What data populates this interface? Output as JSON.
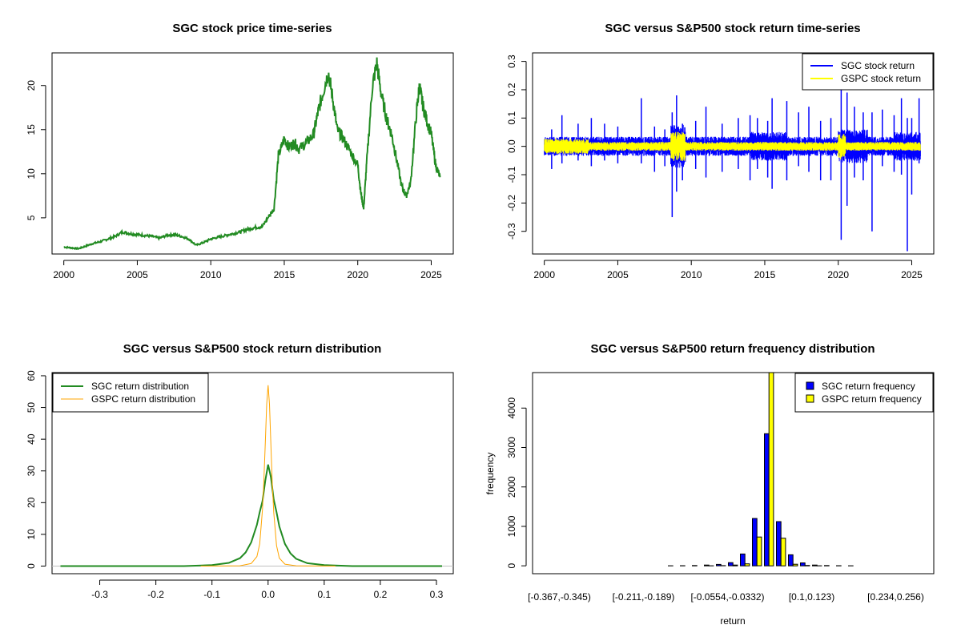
{
  "colors": {
    "sgc": "#228B22",
    "sgc_return": "#0000FF",
    "gspc": "#FFFF00",
    "gspc_density": "#FFA500",
    "axis": "#000000"
  },
  "chart_data": [
    {
      "id": "price",
      "type": "line",
      "title": "SGC stock price time-series",
      "xlabel": "",
      "ylabel": "",
      "xlim": [
        1999.2,
        2026.5
      ],
      "ylim": [
        0.9,
        23.7
      ],
      "xticks": [
        "2000",
        "2005",
        "2010",
        "2015",
        "2020",
        "2025"
      ],
      "yticks": [
        "5",
        "10",
        "15",
        "20"
      ],
      "series": [
        {
          "name": "SGC stock price",
          "color": "#228B22",
          "x": [
            2000.0,
            2000.5,
            2001.0,
            2001.5,
            2002.0,
            2002.5,
            2003.0,
            2003.5,
            2004.0,
            2004.5,
            2005.0,
            2005.5,
            2006.0,
            2006.5,
            2007.0,
            2007.5,
            2008.0,
            2008.5,
            2009.0,
            2009.5,
            2010.0,
            2010.5,
            2011.0,
            2011.5,
            2012.0,
            2012.5,
            2013.0,
            2013.5,
            2014.0,
            2014.3,
            2014.6,
            2015.0,
            2015.3,
            2015.7,
            2016.0,
            2016.5,
            2017.0,
            2017.3,
            2017.6,
            2018.0,
            2018.3,
            2018.6,
            2019.0,
            2019.5,
            2020.0,
            2020.2,
            2020.4,
            2020.6,
            2021.0,
            2021.3,
            2021.6,
            2022.0,
            2022.3,
            2022.6,
            2023.0,
            2023.3,
            2023.6,
            2024.0,
            2024.2,
            2024.4,
            2024.7,
            2025.0,
            2025.3,
            2025.6
          ],
          "y": [
            1.7,
            1.6,
            1.5,
            1.8,
            2.1,
            2.3,
            2.6,
            2.9,
            3.4,
            3.2,
            3.1,
            3.0,
            2.9,
            2.7,
            3.0,
            3.1,
            2.9,
            2.6,
            1.9,
            2.2,
            2.6,
            2.8,
            3.0,
            3.2,
            3.4,
            3.7,
            3.9,
            4.0,
            5.3,
            6.0,
            12.0,
            14.0,
            13.0,
            13.5,
            12.8,
            13.5,
            14.5,
            17.0,
            19.0,
            21.5,
            18.5,
            15.0,
            14.0,
            12.5,
            11.0,
            8.0,
            6.0,
            11.0,
            20.0,
            22.5,
            19.0,
            16.0,
            14.5,
            12.0,
            8.5,
            7.5,
            9.0,
            17.0,
            20.0,
            18.0,
            16.0,
            14.5,
            11.0,
            9.6
          ]
        }
      ]
    },
    {
      "id": "returns",
      "type": "line",
      "title": "SGC versus S&P500 stock return time-series",
      "xlabel": "",
      "ylabel": "",
      "xlim": [
        1999.2,
        2026.5
      ],
      "ylim": [
        -0.38,
        0.33
      ],
      "xticks": [
        "2000",
        "2005",
        "2010",
        "2015",
        "2020",
        "2025"
      ],
      "yticks": [
        "-0.3",
        "-0.2",
        "-0.1",
        "0.0",
        "0.1",
        "0.2",
        "0.3"
      ],
      "legend": [
        "SGC stock return",
        "GSPC stock return"
      ],
      "legend_position": "top-right",
      "spikes": [
        [
          2000.5,
          0.06,
          -0.08
        ],
        [
          2001.2,
          0.11,
          -0.06
        ],
        [
          2002.3,
          0.08,
          -0.05
        ],
        [
          2003.2,
          0.1,
          -0.07
        ],
        [
          2004.1,
          0.08,
          -0.05
        ],
        [
          2005.0,
          0.07,
          -0.06
        ],
        [
          2006.6,
          0.17,
          -0.06
        ],
        [
          2007.5,
          0.07,
          -0.09
        ],
        [
          2008.2,
          0.06,
          -0.07
        ],
        [
          2008.7,
          0.12,
          -0.25
        ],
        [
          2009.0,
          0.18,
          -0.16
        ],
        [
          2009.4,
          0.08,
          -0.12
        ],
        [
          2010.3,
          0.09,
          -0.08
        ],
        [
          2011.0,
          0.14,
          -0.11
        ],
        [
          2012.1,
          0.08,
          -0.09
        ],
        [
          2013.2,
          0.1,
          -0.08
        ],
        [
          2014.0,
          0.11,
          -0.12
        ],
        [
          2014.5,
          0.1,
          -0.08
        ],
        [
          2015.2,
          0.09,
          -0.11
        ],
        [
          2015.5,
          0.17,
          -0.15
        ],
        [
          2016.5,
          0.16,
          -0.12
        ],
        [
          2017.3,
          0.12,
          -0.07
        ],
        [
          2018.0,
          0.14,
          -0.09
        ],
        [
          2018.8,
          0.09,
          -0.12
        ],
        [
          2019.5,
          0.1,
          -0.12
        ],
        [
          2020.2,
          0.2,
          -0.33
        ],
        [
          2020.6,
          0.19,
          -0.21
        ],
        [
          2021.1,
          0.14,
          -0.11
        ],
        [
          2021.7,
          0.12,
          -0.12
        ],
        [
          2022.3,
          0.12,
          -0.3
        ],
        [
          2023.0,
          0.13,
          -0.07
        ],
        [
          2023.8,
          0.11,
          -0.09
        ],
        [
          2024.3,
          0.17,
          -0.1
        ],
        [
          2024.7,
          0.1,
          -0.37
        ],
        [
          2025.0,
          0.1,
          -0.17
        ],
        [
          2025.5,
          0.17,
          -0.06
        ]
      ]
    },
    {
      "id": "density",
      "type": "line",
      "title": "SGC versus S&P500 stock return distribution",
      "xlabel": "",
      "ylabel": "",
      "xlim": [
        -0.385,
        0.33
      ],
      "ylim": [
        -2.4,
        61
      ],
      "xticks": [
        "-0.3",
        "-0.2",
        "-0.1",
        "0.0",
        "0.1",
        "0.2",
        "0.3"
      ],
      "yticks": [
        "0",
        "10",
        "20",
        "30",
        "40",
        "50",
        "60"
      ],
      "legend": [
        "SGC return distribution",
        "GSPC return distribution"
      ],
      "legend_position": "top-left",
      "series": [
        {
          "name": "SGC return distribution",
          "color": "#228B22",
          "x": [
            -0.37,
            -0.15,
            -0.1,
            -0.07,
            -0.05,
            -0.04,
            -0.03,
            -0.02,
            -0.015,
            -0.01,
            -0.005,
            0.0,
            0.005,
            0.01,
            0.015,
            0.02,
            0.03,
            0.04,
            0.05,
            0.07,
            0.1,
            0.15,
            0.31
          ],
          "y": [
            0,
            0,
            0.3,
            1.0,
            2.5,
            4.3,
            7.5,
            13.0,
            17.0,
            20.5,
            27.0,
            32.0,
            28.0,
            21.0,
            17.0,
            12.5,
            7.0,
            4.0,
            2.3,
            0.9,
            0.3,
            0,
            0
          ]
        },
        {
          "name": "GSPC return distribution",
          "color": "#FFA500",
          "x": [
            -0.12,
            -0.05,
            -0.03,
            -0.02,
            -0.015,
            -0.01,
            -0.0075,
            -0.005,
            -0.0025,
            0.0,
            0.0025,
            0.005,
            0.0075,
            0.01,
            0.015,
            0.02,
            0.03,
            0.05,
            0.12
          ],
          "y": [
            0,
            0.1,
            0.8,
            3.0,
            7.0,
            18.0,
            27.0,
            39.0,
            51.0,
            57.0,
            51.0,
            38.0,
            26.0,
            17.0,
            6.5,
            2.5,
            0.6,
            0.1,
            0
          ]
        }
      ]
    },
    {
      "id": "frequency",
      "type": "bar",
      "title": "SGC versus S&P500 return frequency distribution",
      "xlabel": "return",
      "ylabel": "frequency",
      "ylim": [
        -200,
        4900
      ],
      "yticks": [
        "0",
        "1000",
        "2000",
        "3000",
        "4000"
      ],
      "category_labels_shown": [
        "[-0.367,-0.345)",
        "[-0.211,-0.189)",
        "[-0.0554,-0.0332)",
        "[0.1,0.123)",
        "[0.234,0.256)"
      ],
      "legend": [
        "SGC return frequency",
        "GSPC return frequency"
      ],
      "legend_position": "top-right",
      "bin_count": 31,
      "series": [
        {
          "name": "SGC return frequency",
          "color": "#0000FF",
          "values": [
            1,
            0,
            0,
            0,
            0,
            0,
            0,
            0,
            0,
            1,
            2,
            4,
            8,
            20,
            35,
            80,
            300,
            1200,
            3350,
            1120,
            280,
            75,
            20,
            8,
            4,
            2,
            1,
            0,
            0,
            1,
            1
          ]
        },
        {
          "name": "GSPC return frequency",
          "color": "#FFFF00",
          "values": [
            0,
            0,
            0,
            0,
            0,
            0,
            0,
            0,
            0,
            0,
            0,
            0,
            0,
            2,
            5,
            20,
            50,
            730,
            4900,
            700,
            40,
            10,
            2,
            0,
            0,
            0,
            0,
            0,
            0,
            0,
            0
          ]
        }
      ]
    }
  ]
}
